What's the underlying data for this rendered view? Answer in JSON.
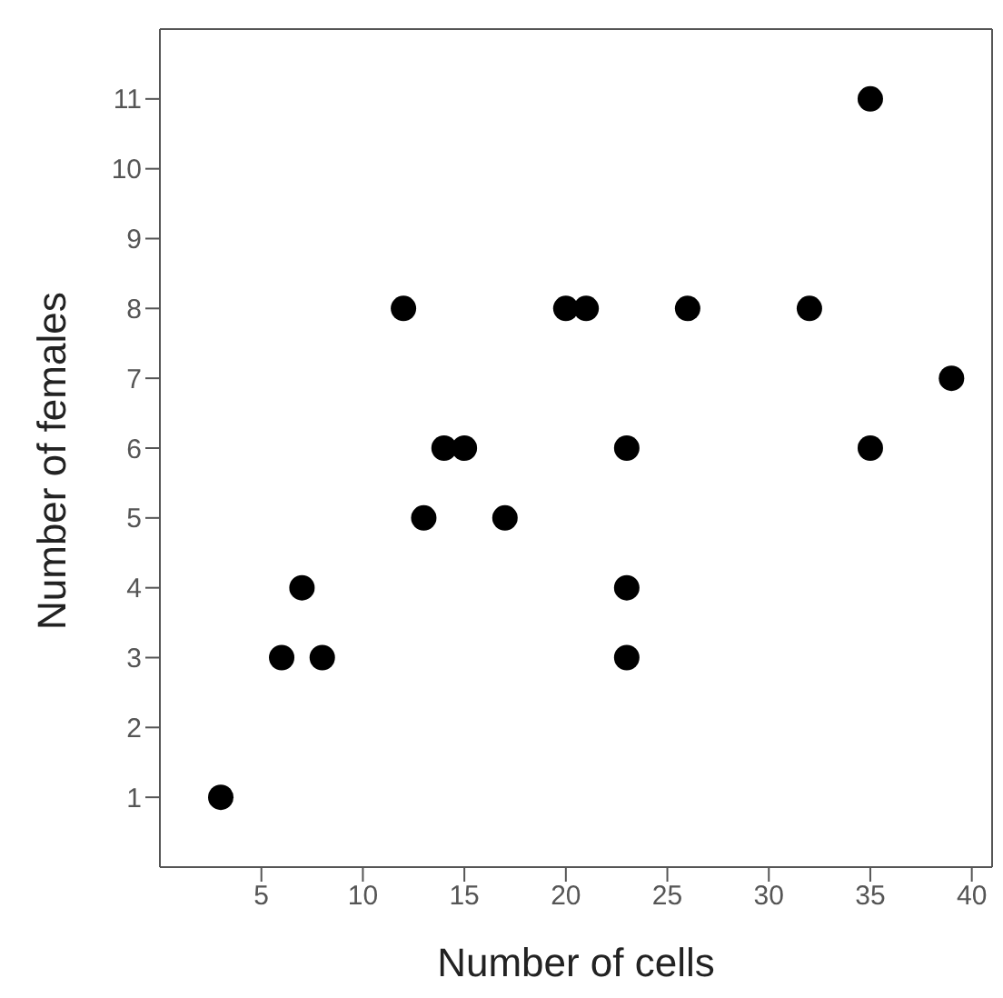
{
  "chart_data": {
    "type": "scatter",
    "xlabel": "Number of cells",
    "ylabel": "Number of females",
    "x": [
      3,
      6,
      7,
      8,
      12,
      13,
      14,
      15,
      17,
      20,
      21,
      23,
      23,
      23,
      26,
      32,
      35,
      35,
      39
    ],
    "values": [
      1,
      3,
      4,
      3,
      8,
      5,
      6,
      6,
      5,
      8,
      8,
      6,
      4,
      3,
      8,
      8,
      11,
      6,
      7
    ],
    "color": "#000000",
    "marker": "circle",
    "grid": false,
    "legend": false,
    "xlim": [
      0,
      41
    ],
    "xticks": [
      5,
      10,
      15,
      20,
      25,
      30,
      35,
      40
    ],
    "ylim": [
      0,
      12
    ],
    "yticks": [
      1,
      2,
      3,
      4,
      5,
      6,
      7,
      8,
      9,
      10,
      11
    ]
  }
}
